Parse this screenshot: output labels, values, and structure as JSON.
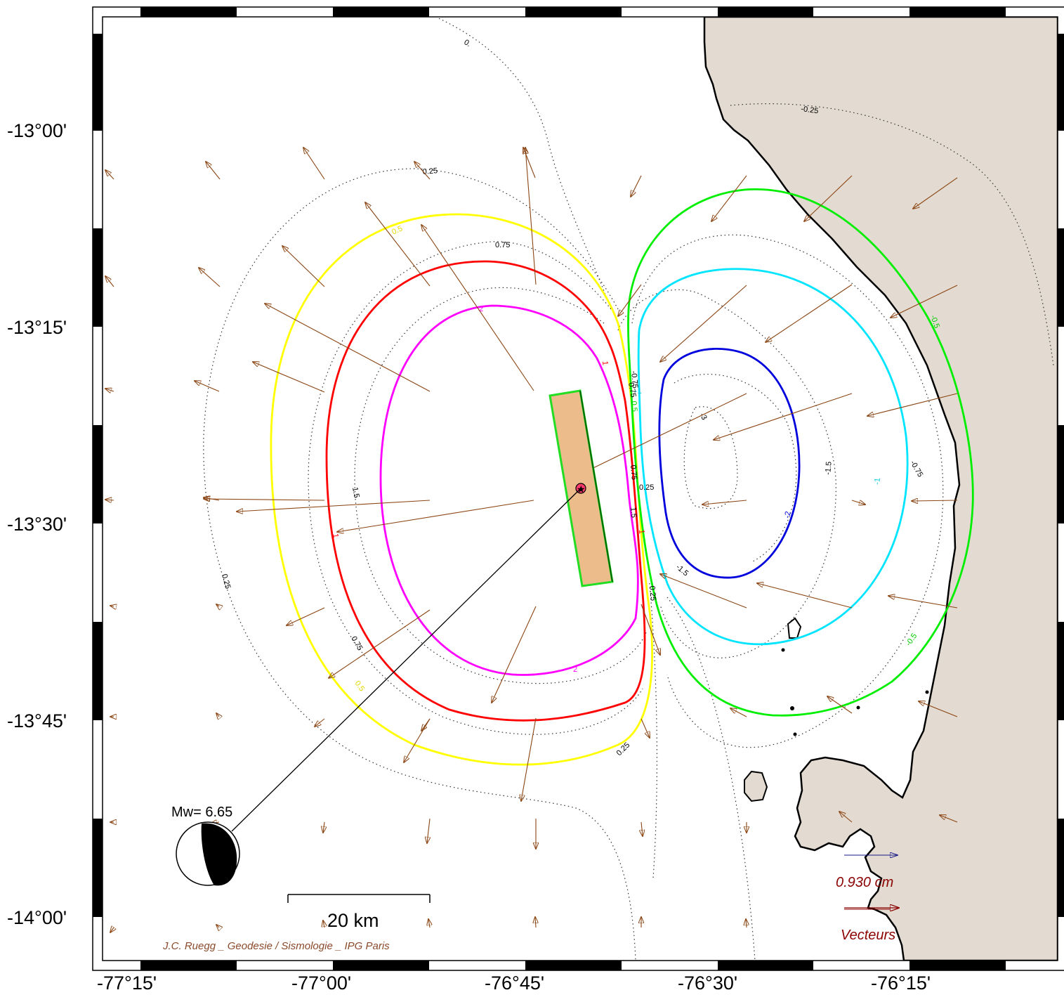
{
  "map": {
    "lat_labels": [
      "-13°00'",
      "-13°15'",
      "-13°30'",
      "-13°45'",
      "-14°00'"
    ],
    "lon_labels": [
      "-77°15'",
      "-77°00'",
      "-76°45'",
      "-76°30'",
      "-76°15'"
    ]
  },
  "contour_labels": {
    "dotted": [
      "0.",
      "-0.25",
      "0.25",
      "0.75",
      "0.75",
      "1.5",
      "0.75",
      "0.25",
      "0.25",
      "0.25",
      "-0.75",
      "-1.5",
      "-1.5",
      "-3",
      "-0.75",
      "0.75",
      "1.5",
      "0.25"
    ],
    "yellow": [
      "0.5",
      "0.5"
    ],
    "red": [
      "1",
      "1",
      "1"
    ],
    "magenta": [
      "2",
      "2"
    ],
    "green": [
      "-0.5",
      "-0.5",
      "0.5"
    ],
    "cyan": [
      "-1",
      "-1"
    ],
    "blue": [
      "-2"
    ]
  },
  "mechanism": {
    "label": "Mw= 6.65"
  },
  "scale_bar": {
    "label": "20 km"
  },
  "vector_legend": {
    "value": "0.930  cm",
    "title": "Vecteurs"
  },
  "credit": "J.C. Ruegg _ Geodesie / Sismologie _ IPG Paris",
  "colors": {
    "land": "#e3dbd1",
    "fault_fill": "#ecbc8b",
    "fault_edge": "#22dd22",
    "arrow": "#8b4513",
    "yellow": "#ffff00",
    "red": "#ff0000",
    "magenta": "#ff00ff",
    "green": "#00ee00",
    "cyan": "#00e5ff",
    "blue": "#0000dd"
  }
}
